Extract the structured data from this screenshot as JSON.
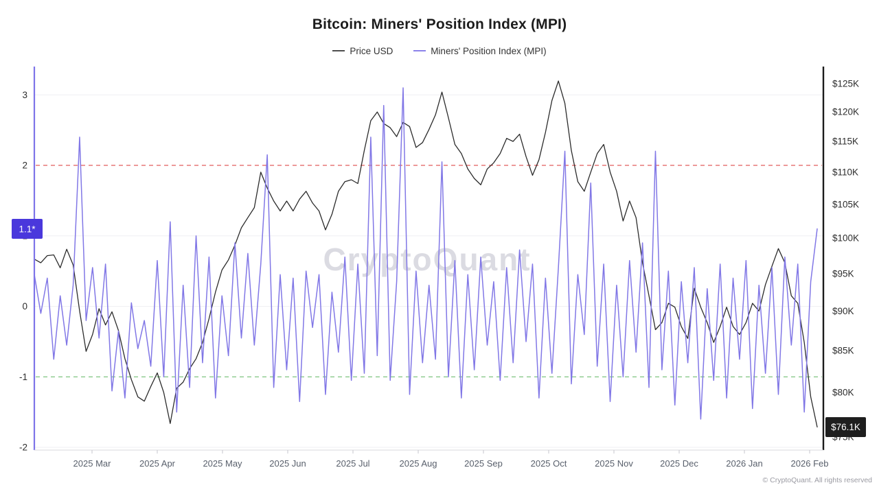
{
  "title": "Bitcoin: Miners' Position Index (MPI)",
  "watermark": "CryptoQuant",
  "copyright": "© CryptoQuant. All rights reserved",
  "legend": [
    {
      "label": "Price USD",
      "color": "#4d4d4d"
    },
    {
      "label": "Miners' Position Index (MPI)",
      "color": "#8b82ea"
    }
  ],
  "chart_data": {
    "type": "line",
    "title": "Bitcoin: Miners' Position Index (MPI)",
    "x_start": "2025-02-02",
    "x_step_days": 3,
    "x_tick_labels": [
      "2025 Mar",
      "2025 Apr",
      "2025 May",
      "2025 Jun",
      "2025 Jul",
      "2025 Aug",
      "2025 Sep",
      "2025 Oct",
      "2025 Nov",
      "2025 Dec",
      "2026 Jan",
      "2026 Feb"
    ],
    "left_axis": {
      "title": "MPI",
      "scale": "linear",
      "min": -2.1,
      "max": 3.4,
      "label_values": [
        3,
        2,
        1,
        0,
        -1,
        -2
      ]
    },
    "right_axis": {
      "title": "Price USD",
      "scale": "log",
      "min": 73.5,
      "max": 127.3,
      "ticks": [
        {
          "label": "$125K",
          "value": 125
        },
        {
          "label": "$120K",
          "value": 120
        },
        {
          "label": "$115K",
          "value": 115
        },
        {
          "label": "$110K",
          "value": 110
        },
        {
          "label": "$105K",
          "value": 105
        },
        {
          "label": "$100K",
          "value": 100
        },
        {
          "label": "$95K",
          "value": 95
        },
        {
          "label": "$90K",
          "value": 90
        },
        {
          "label": "$85K",
          "value": 85
        },
        {
          "label": "$80K",
          "value": 80
        },
        {
          "label": "$75K",
          "value": 75
        }
      ]
    },
    "reference_lines": [
      {
        "value": 2,
        "color": "#e05c5c",
        "style": "dashed"
      },
      {
        "value": -1,
        "color": "#7cc47f",
        "style": "dashed"
      }
    ],
    "grid": "faint horizontal at left-axis integers",
    "legend_position": "top-center",
    "series": [
      {
        "name": "Price USD",
        "axis": "right",
        "color": "#2b2b2b",
        "unit": "K USD",
        "values": [
          97.0,
          96.5,
          97.5,
          97.6,
          95.8,
          98.4,
          96.2,
          90.0,
          84.9,
          87.0,
          90.3,
          88.2,
          89.9,
          87.5,
          84.0,
          81.5,
          79.5,
          79.0,
          80.7,
          82.3,
          80.0,
          76.5,
          80.5,
          81.2,
          82.8,
          84.0,
          86.0,
          89.0,
          92.5,
          95.5,
          96.9,
          99.0,
          101.5,
          103.0,
          104.5,
          110.0,
          107.5,
          105.5,
          104.0,
          105.5,
          104.0,
          105.8,
          107.0,
          105.2,
          104.0,
          101.2,
          103.5,
          107.0,
          108.5,
          108.8,
          108.2,
          113.5,
          118.5,
          120.0,
          118.0,
          117.3,
          115.8,
          118.2,
          117.5,
          114.0,
          114.8,
          117.0,
          119.5,
          123.5,
          119.0,
          114.5,
          113.0,
          110.5,
          109.0,
          108.0,
          110.5,
          111.5,
          113.0,
          115.5,
          115.0,
          116.2,
          112.5,
          109.5,
          112.0,
          116.5,
          122.0,
          125.5,
          121.5,
          113.5,
          108.5,
          107.0,
          110.0,
          113.0,
          114.5,
          110.0,
          107.0,
          102.5,
          105.5,
          103.0,
          96.5,
          92.0,
          87.6,
          88.5,
          91.0,
          90.5,
          88.0,
          86.5,
          93.0,
          90.5,
          88.5,
          86.0,
          88.0,
          90.5,
          88.0,
          87.0,
          88.5,
          91.0,
          90.0,
          93.5,
          96.0,
          98.5,
          96.5,
          92.0,
          91.0,
          86.0,
          79.5,
          76.1
        ]
      },
      {
        "name": "Miners' Position Index (MPI)",
        "axis": "left",
        "color": "#8177e6",
        "values": [
          0.45,
          -0.1,
          0.4,
          -0.75,
          0.15,
          -0.55,
          0.3,
          2.4,
          -0.2,
          0.55,
          -0.45,
          0.6,
          -1.2,
          -0.35,
          -1.3,
          0.05,
          -0.6,
          -0.2,
          -0.85,
          0.65,
          -1.0,
          1.2,
          -1.5,
          0.3,
          -1.15,
          1.0,
          -0.8,
          0.7,
          -1.3,
          0.15,
          -0.7,
          0.9,
          -0.45,
          0.75,
          -0.55,
          0.6,
          2.15,
          -1.15,
          0.45,
          -0.9,
          0.4,
          -1.35,
          0.5,
          -0.3,
          0.45,
          -1.25,
          0.2,
          -0.65,
          0.7,
          -1.05,
          0.6,
          -0.95,
          2.4,
          -0.7,
          2.85,
          -1.05,
          0.35,
          3.1,
          -1.25,
          0.5,
          -0.8,
          0.3,
          -0.75,
          2.05,
          -1.0,
          0.65,
          -1.3,
          0.45,
          -0.9,
          0.7,
          -0.55,
          0.35,
          -1.05,
          0.55,
          -0.8,
          0.8,
          -0.5,
          0.6,
          -1.3,
          0.4,
          -0.95,
          0.55,
          2.2,
          -1.1,
          0.45,
          -0.4,
          1.75,
          -0.85,
          0.6,
          -1.35,
          0.3,
          -1.0,
          0.65,
          -0.65,
          0.9,
          -1.15,
          2.2,
          -0.9,
          0.5,
          -1.4,
          0.35,
          -0.8,
          0.55,
          -1.6,
          0.25,
          -1.05,
          0.6,
          -1.3,
          0.4,
          -0.75,
          0.65,
          -1.45,
          0.3,
          -0.95,
          0.55,
          -1.25,
          0.7,
          -0.55,
          0.6,
          -1.5,
          0.35,
          1.1
        ]
      }
    ],
    "last_value_badges": [
      {
        "text": "1.1*",
        "value": 1.1,
        "axis": "left",
        "bg": "#4a38dc",
        "fg": "#ffffff"
      },
      {
        "text": "$76.1K",
        "value": 76.1,
        "axis": "right",
        "bg": "#1e1e1e",
        "fg": "#ffffff"
      }
    ]
  }
}
